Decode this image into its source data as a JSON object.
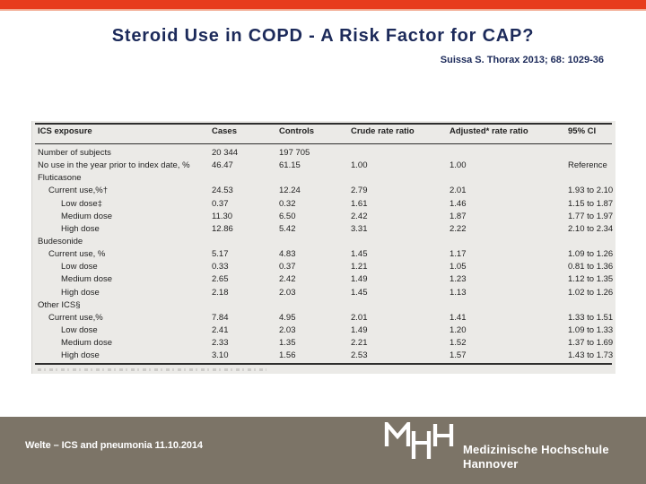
{
  "slide": {
    "title": "Steroid Use in COPD - A Risk Factor for CAP?",
    "reference": "Suissa S. Thorax 2013; 68: 1029-36"
  },
  "table": {
    "columns": {
      "exposure": "ICS exposure",
      "cases": "Cases",
      "controls": "Controls",
      "crude": "Crude rate ratio",
      "adjusted": "Adjusted* rate ratio",
      "ci": "95% CI"
    },
    "rows": [
      {
        "label": "Number of subjects",
        "indent": 0,
        "cases": "20 344",
        "controls": "197 705",
        "crude": "",
        "adjusted": "",
        "ci": ""
      },
      {
        "label": "No use in the year prior to index date, %",
        "indent": 0,
        "cases": "46.47",
        "controls": "61.15",
        "crude": "1.00",
        "adjusted": "1.00",
        "ci": "Reference"
      },
      {
        "label": "Fluticasone",
        "indent": 0,
        "cases": "",
        "controls": "",
        "crude": "",
        "adjusted": "",
        "ci": ""
      },
      {
        "label": "Current use,%†",
        "indent": 1,
        "cases": "24.53",
        "controls": "12.24",
        "crude": "2.79",
        "adjusted": "2.01",
        "ci": "1.93 to 2.10"
      },
      {
        "label": "Low dose‡",
        "indent": 2,
        "cases": "0.37",
        "controls": "0.32",
        "crude": "1.61",
        "adjusted": "1.46",
        "ci": "1.15 to 1.87"
      },
      {
        "label": "Medium dose",
        "indent": 2,
        "cases": "11.30",
        "controls": "6.50",
        "crude": "2.42",
        "adjusted": "1.87",
        "ci": "1.77 to 1.97"
      },
      {
        "label": "High dose",
        "indent": 2,
        "cases": "12.86",
        "controls": "5.42",
        "crude": "3.31",
        "adjusted": "2.22",
        "ci": "2.10 to 2.34"
      },
      {
        "label": "Budesonide",
        "indent": 0,
        "cases": "",
        "controls": "",
        "crude": "",
        "adjusted": "",
        "ci": ""
      },
      {
        "label": "Current use, %",
        "indent": 1,
        "cases": "5.17",
        "controls": "4.83",
        "crude": "1.45",
        "adjusted": "1.17",
        "ci": "1.09 to 1.26"
      },
      {
        "label": "Low dose",
        "indent": 2,
        "cases": "0.33",
        "controls": "0.37",
        "crude": "1.21",
        "adjusted": "1.05",
        "ci": "0.81 to 1.36"
      },
      {
        "label": "Medium dose",
        "indent": 2,
        "cases": "2.65",
        "controls": "2.42",
        "crude": "1.49",
        "adjusted": "1.23",
        "ci": "1.12 to 1.35"
      },
      {
        "label": "High dose",
        "indent": 2,
        "cases": "2.18",
        "controls": "2.03",
        "crude": "1.45",
        "adjusted": "1.13",
        "ci": "1.02 to 1.26"
      },
      {
        "label": "Other ICS§",
        "indent": 0,
        "cases": "",
        "controls": "",
        "crude": "",
        "adjusted": "",
        "ci": ""
      },
      {
        "label": "Current use,%",
        "indent": 1,
        "cases": "7.84",
        "controls": "4.95",
        "crude": "2.01",
        "adjusted": "1.41",
        "ci": "1.33 to 1.51"
      },
      {
        "label": "Low dose",
        "indent": 2,
        "cases": "2.41",
        "controls": "2.03",
        "crude": "1.49",
        "adjusted": "1.20",
        "ci": "1.09 to 1.33"
      },
      {
        "label": "Medium dose",
        "indent": 2,
        "cases": "2.33",
        "controls": "1.35",
        "crude": "2.21",
        "adjusted": "1.52",
        "ci": "1.37 to 1.69"
      },
      {
        "label": "High dose",
        "indent": 2,
        "cases": "3.10",
        "controls": "1.56",
        "crude": "2.53",
        "adjusted": "1.57",
        "ci": "1.43 to 1.73"
      }
    ]
  },
  "footer": {
    "left_text": "Welte – ICS and pneumonia 11.10.2014",
    "logo_acronym": "MHH",
    "logo_line1": "Medizinische Hochschule",
    "logo_line2": "Hannover"
  },
  "colors": {
    "top_bar": "#e73c1d",
    "title_navy": "#1c2a5a",
    "footer_taupe": "#7c7467",
    "table_paper": "#ebeae7"
  }
}
